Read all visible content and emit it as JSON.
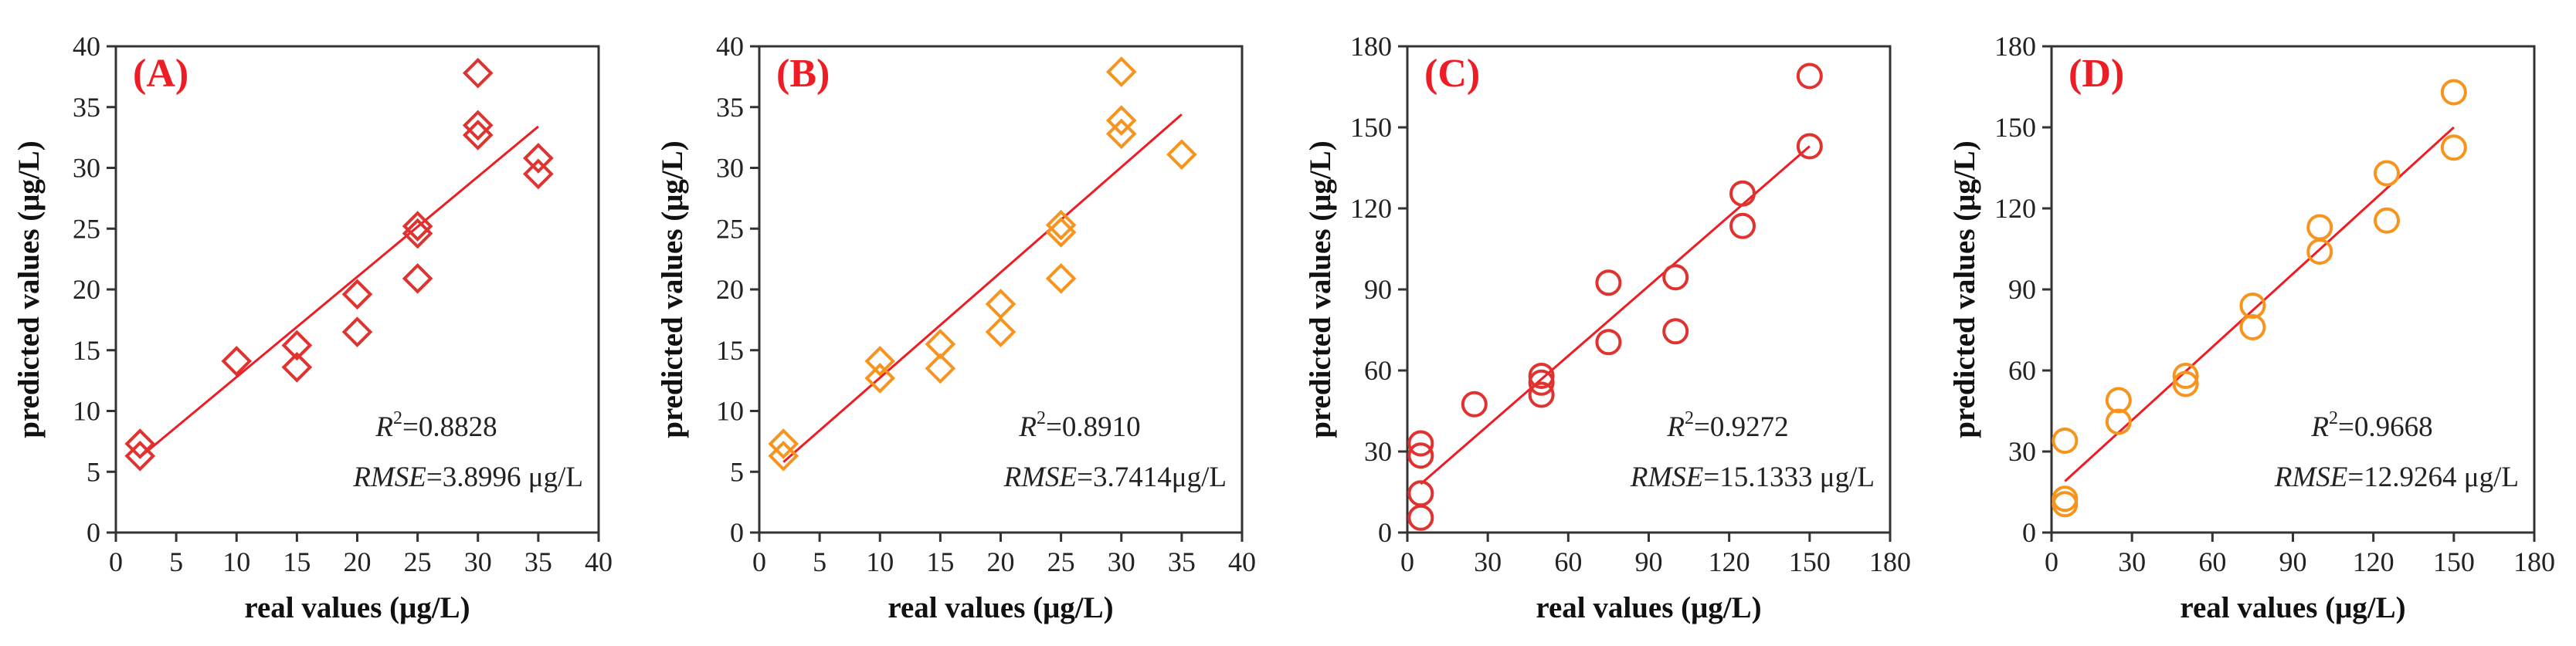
{
  "chart_data": [
    {
      "type": "scatter",
      "panel_label": "(A)",
      "xlabel": "real values (μg/L)",
      "ylabel": "predicted values (μg/L)",
      "xlim": [
        0,
        40
      ],
      "ylim": [
        0,
        40
      ],
      "xticks": [
        0,
        5,
        10,
        15,
        20,
        25,
        30,
        35,
        40
      ],
      "yticks": [
        0,
        5,
        10,
        15,
        20,
        25,
        30,
        35,
        40
      ],
      "marker": "diamond",
      "color": "#e0322e",
      "points": [
        [
          2,
          6.3
        ],
        [
          2,
          7.3
        ],
        [
          10,
          14.1
        ],
        [
          15,
          13.6
        ],
        [
          15,
          15.4
        ],
        [
          20,
          16.5
        ],
        [
          20,
          19.6
        ],
        [
          25,
          20.9
        ],
        [
          25,
          24.6
        ],
        [
          25,
          25.2
        ],
        [
          30,
          32.7
        ],
        [
          30,
          33.5
        ],
        [
          30,
          37.8
        ],
        [
          35,
          29.5
        ],
        [
          35,
          30.8
        ]
      ],
      "fit_line": [
        [
          2,
          6.2
        ],
        [
          35,
          33.4
        ]
      ],
      "r2_label": "R",
      "r2_sup": "2",
      "r2_value": "=0.8828",
      "rmse_label": "RMSE",
      "rmse_value": "=3.8996 μg/L"
    },
    {
      "type": "scatter",
      "panel_label": "(B)",
      "xlabel": "real values (μg/L)",
      "ylabel": "predicted values (μg/L)",
      "xlim": [
        0,
        40
      ],
      "ylim": [
        0,
        40
      ],
      "xticks": [
        0,
        5,
        10,
        15,
        20,
        25,
        30,
        35,
        40
      ],
      "yticks": [
        0,
        5,
        10,
        15,
        20,
        25,
        30,
        35,
        40
      ],
      "marker": "diamond",
      "color": "#f7941d",
      "points": [
        [
          2,
          6.3
        ],
        [
          2,
          7.3
        ],
        [
          10,
          12.7
        ],
        [
          10,
          14.1
        ],
        [
          15,
          13.5
        ],
        [
          15,
          15.5
        ],
        [
          20,
          16.5
        ],
        [
          20,
          18.8
        ],
        [
          25,
          20.9
        ],
        [
          25,
          24.7
        ],
        [
          25,
          25.3
        ],
        [
          30,
          32.8
        ],
        [
          30,
          33.9
        ],
        [
          30,
          37.9
        ],
        [
          35,
          31.1
        ]
      ],
      "fit_line": [
        [
          2,
          5.8
        ],
        [
          35,
          34.4
        ]
      ],
      "r2_label": "R",
      "r2_sup": "2",
      "r2_value": "=0.8910",
      "rmse_label": "RMSE",
      "rmse_value": "=3.7414μg/L"
    },
    {
      "type": "scatter",
      "panel_label": "(C)",
      "xlabel": "real values (μg/L)",
      "ylabel": "predicted values (μg/L)",
      "xlim": [
        0,
        180
      ],
      "ylim": [
        0,
        180
      ],
      "xticks": [
        0,
        30,
        60,
        90,
        120,
        150,
        180
      ],
      "yticks": [
        0,
        30,
        60,
        90,
        120,
        150,
        180
      ],
      "marker": "circle",
      "color": "#e0322e",
      "points": [
        [
          5,
          5.5
        ],
        [
          5,
          14.5
        ],
        [
          5,
          28.5
        ],
        [
          5,
          33
        ],
        [
          25,
          47.5
        ],
        [
          50,
          51
        ],
        [
          50,
          55.5
        ],
        [
          50,
          58
        ],
        [
          75,
          70.5
        ],
        [
          75,
          92.5
        ],
        [
          100,
          74.5
        ],
        [
          100,
          94.5
        ],
        [
          125,
          113.5
        ],
        [
          125,
          125.5
        ],
        [
          150,
          143
        ],
        [
          150,
          169
        ]
      ],
      "fit_line": [
        [
          5,
          18
        ],
        [
          150,
          143
        ]
      ],
      "r2_label": "R",
      "r2_sup": "2",
      "r2_value": "=0.9272",
      "rmse_label": "RMSE",
      "rmse_value": "=15.1333 μg/L"
    },
    {
      "type": "scatter",
      "panel_label": "(D)",
      "xlabel": "real values (μg/L)",
      "ylabel": "predicted values (μg/L)",
      "xlim": [
        0,
        180
      ],
      "ylim": [
        0,
        180
      ],
      "xticks": [
        0,
        30,
        60,
        90,
        120,
        150,
        180
      ],
      "yticks": [
        0,
        30,
        60,
        90,
        120,
        150,
        180
      ],
      "marker": "circle",
      "color": "#f7941d",
      "points": [
        [
          5,
          10.5
        ],
        [
          5,
          12.5
        ],
        [
          5,
          34
        ],
        [
          25,
          41
        ],
        [
          25,
          49
        ],
        [
          50,
          55
        ],
        [
          50,
          58
        ],
        [
          75,
          76
        ],
        [
          75,
          84
        ],
        [
          100,
          104
        ],
        [
          100,
          113
        ],
        [
          125,
          115.5
        ],
        [
          125,
          133
        ],
        [
          150,
          142.5
        ],
        [
          150,
          163
        ]
      ],
      "fit_line": [
        [
          5,
          19
        ],
        [
          150,
          150
        ]
      ],
      "r2_label": "R",
      "r2_sup": "2",
      "r2_value": "=0.9668",
      "rmse_label": "RMSE",
      "rmse_value": "=12.9264 μg/L"
    }
  ]
}
